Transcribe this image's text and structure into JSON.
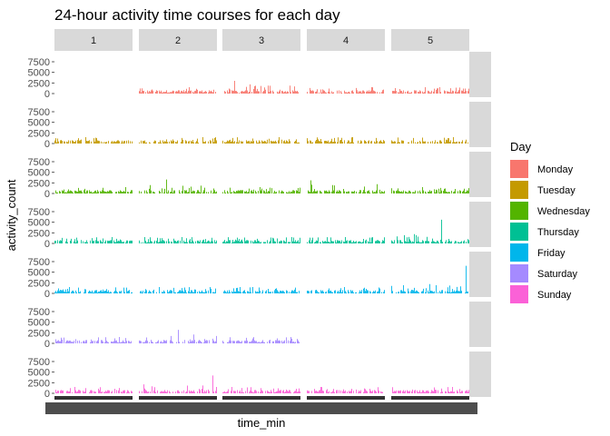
{
  "chart_data": {
    "type": "bar",
    "title": "24-hour activity time courses for each day",
    "xlabel": "time_min",
    "ylabel": "activity_count",
    "yticks": [
      "0",
      "2500",
      "5000",
      "7500"
    ],
    "ylim": [
      0,
      9000
    ],
    "facet_columns": [
      "1",
      "2",
      "3",
      "4",
      "5"
    ],
    "facet_rows": [
      "Monday",
      "Tuesday",
      "Wednesday",
      "Thursday",
      "Friday",
      "Saturday",
      "Sunday"
    ],
    "legend": {
      "title": "Day",
      "position": "right",
      "entries": [
        {
          "label": "Monday",
          "color": "#F8766D"
        },
        {
          "label": "Tuesday",
          "color": "#C49A00"
        },
        {
          "label": "Wednesday",
          "color": "#53B400"
        },
        {
          "label": "Thursday",
          "color": "#00C094"
        },
        {
          "label": "Friday",
          "color": "#00B6EB"
        },
        {
          "label": "Saturday",
          "color": "#A58AFF"
        },
        {
          "label": "Sunday",
          "color": "#FB61D7"
        }
      ]
    },
    "missing_panels": [
      {
        "row": "Monday",
        "column": "1"
      },
      {
        "row": "Saturday",
        "column": "4"
      },
      {
        "row": "Saturday",
        "column": "5"
      }
    ],
    "peaks": [
      {
        "row": "Monday",
        "column": "3",
        "max_activity": 3000
      },
      {
        "row": "Wednesday",
        "column": "2",
        "max_activity": 3300
      },
      {
        "row": "Wednesday",
        "column": "4",
        "max_activity": 3100
      },
      {
        "row": "Thursday",
        "column": "5",
        "max_activity": 5600
      },
      {
        "row": "Friday",
        "column": "5",
        "max_activity": 6500
      },
      {
        "row": "Saturday",
        "column": "2",
        "max_activity": 3200
      },
      {
        "row": "Sunday",
        "column": "2",
        "max_activity": 4200
      }
    ],
    "grid": false
  }
}
